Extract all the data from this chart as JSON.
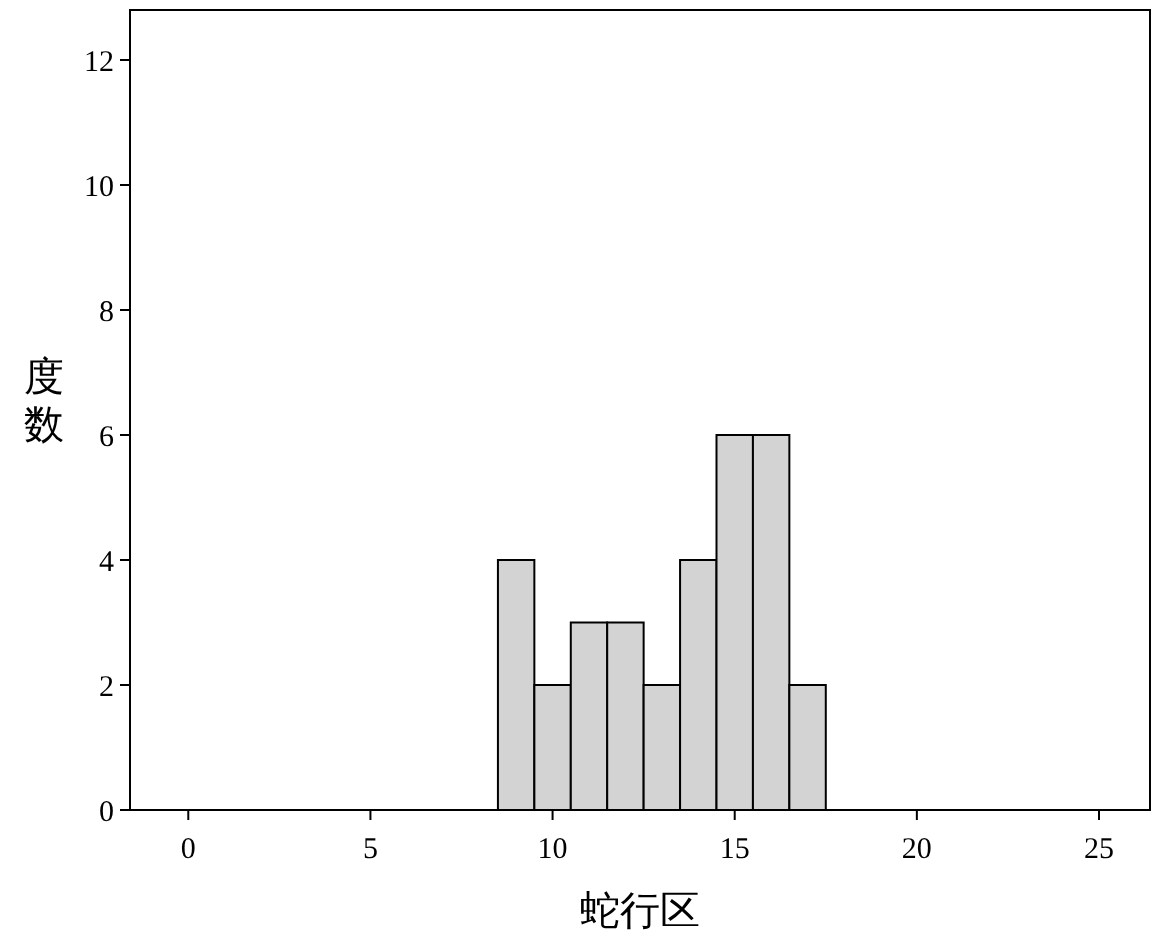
{
  "chart_data": {
    "type": "histogram",
    "xlabel": "蛇行区",
    "ylabel": "度数",
    "bins": [
      8.5,
      9.5,
      10.5,
      11.5,
      12.5,
      13.5,
      14.5,
      15.5,
      16.5,
      17.5
    ],
    "values": [
      4,
      2,
      3,
      3,
      2,
      4,
      6,
      6,
      2
    ],
    "color": "#d3d3d3",
    "xlim": [
      -1.6,
      26.4
    ],
    "ylim": [
      0,
      12.8
    ],
    "xticks": [
      0,
      5,
      10,
      15,
      20,
      25
    ],
    "yticks": [
      0,
      2,
      4,
      6,
      8,
      10,
      12
    ],
    "grid": false
  }
}
